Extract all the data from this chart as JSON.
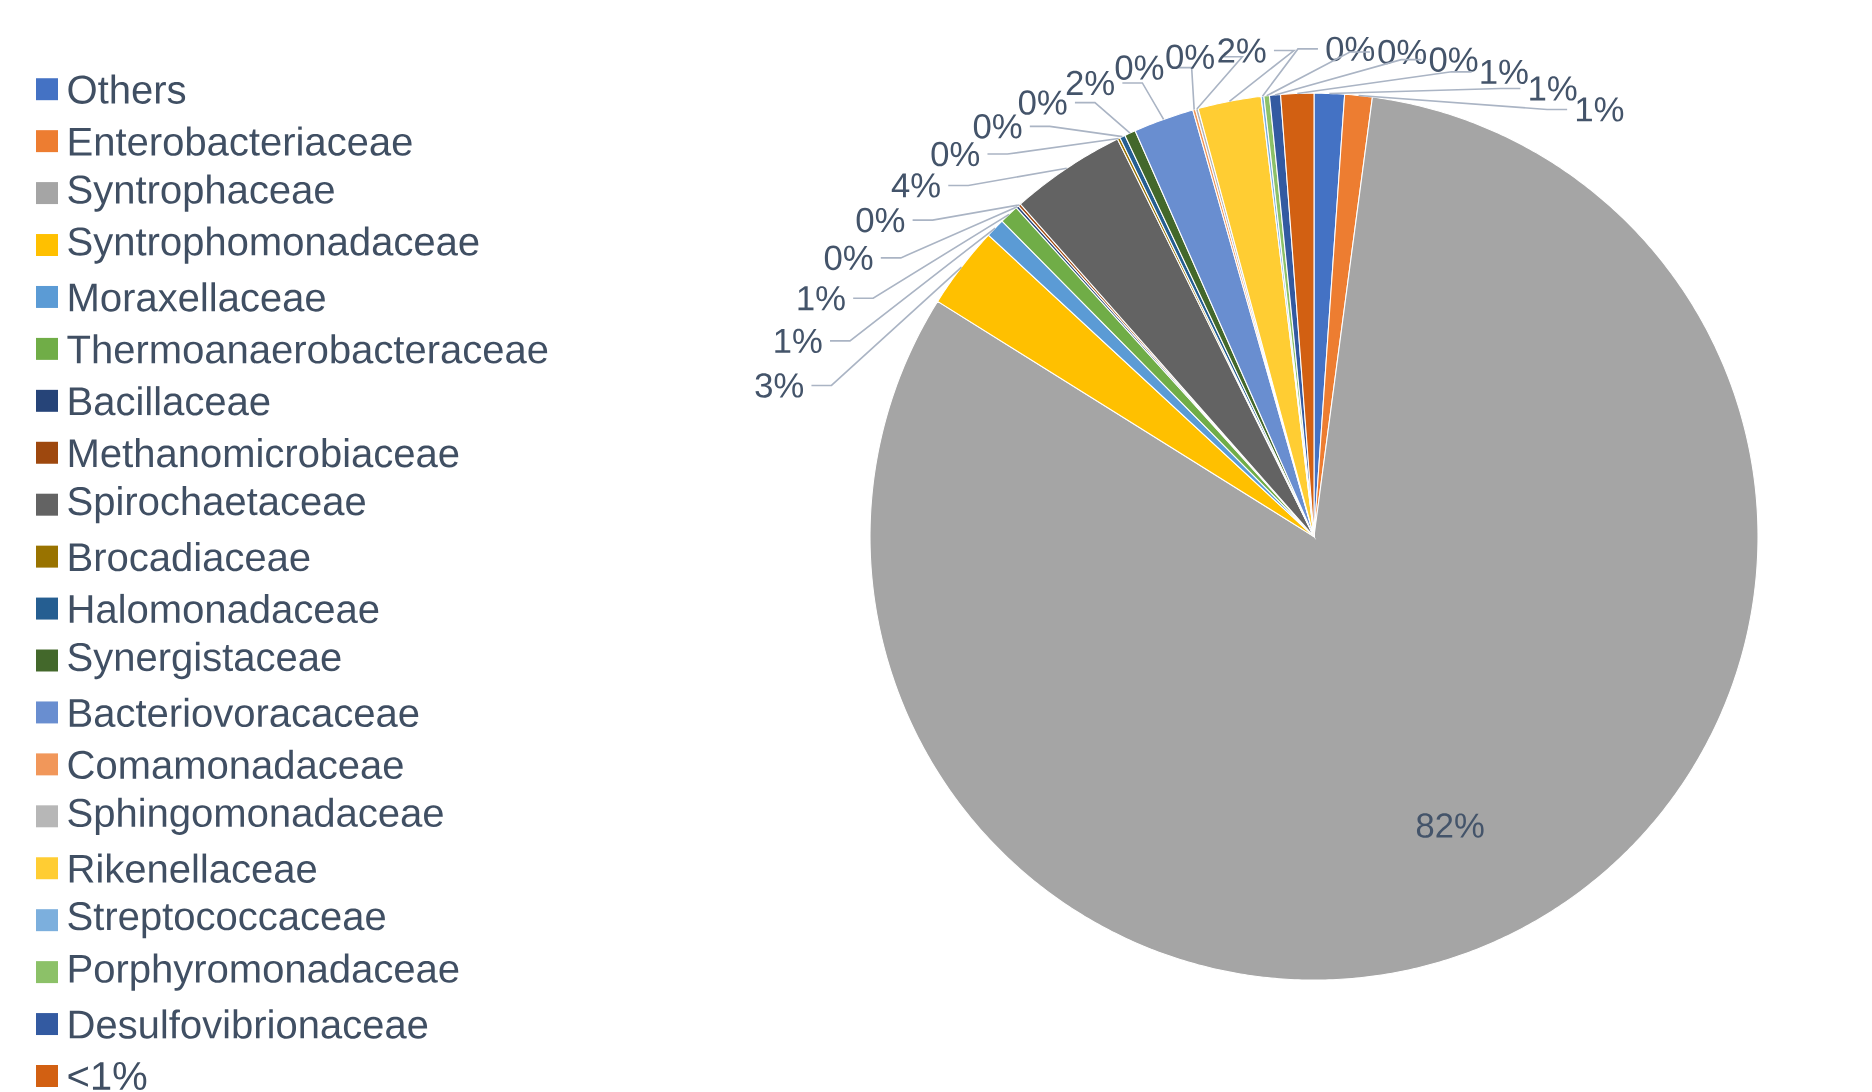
{
  "chart_data": {
    "type": "pie",
    "categories": [
      "Others",
      "Enterobacteriaceae",
      "Syntrophaceae",
      "Syntrophomonadaceae",
      "Moraxellaceae",
      "Thermoanaerobacteraceae",
      "Bacillaceae",
      "Methanomicrobiaceae",
      "Spirochaetaceae",
      "Brocadiaceae",
      "Halomonadaceae",
      "Synergistaceae",
      "Bacteriovoracaceae",
      "Comamonadaceae",
      "Sphingomonadaceae",
      "Rikenellaceae",
      "Streptococcaceae",
      "Porphyromonadaceae",
      "Desulfovibrionaceae",
      "<1%"
    ],
    "values": [
      1.1,
      1.0,
      81.8,
      3.0,
      0.7,
      0.7,
      0.1,
      0.1,
      4.2,
      0.1,
      0.2,
      0.4,
      2.2,
      0.1,
      0.1,
      2.3,
      0.1,
      0.2,
      0.4,
      1.2
    ],
    "value_labels": [
      "1%",
      "1%",
      "82%",
      "3%",
      "1%",
      "1%",
      "0%",
      "0%",
      "4%",
      "0%",
      "0%",
      "0%",
      "2%",
      "0%",
      "0%",
      "2%",
      "0%",
      "0%",
      "0%",
      "1%"
    ],
    "colors": [
      "#4472c4",
      "#ed7d31",
      "#a5a5a5",
      "#ffc000",
      "#5b9bd5",
      "#70ad47",
      "#264478",
      "#9e480e",
      "#636363",
      "#997300",
      "#255e91",
      "#43682b",
      "#698ed0",
      "#f1975a",
      "#b7b7b7",
      "#ffcd33",
      "#7cafdd",
      "#8cc168",
      "#335aa1",
      "#d26012"
    ],
    "legend": "left"
  }
}
